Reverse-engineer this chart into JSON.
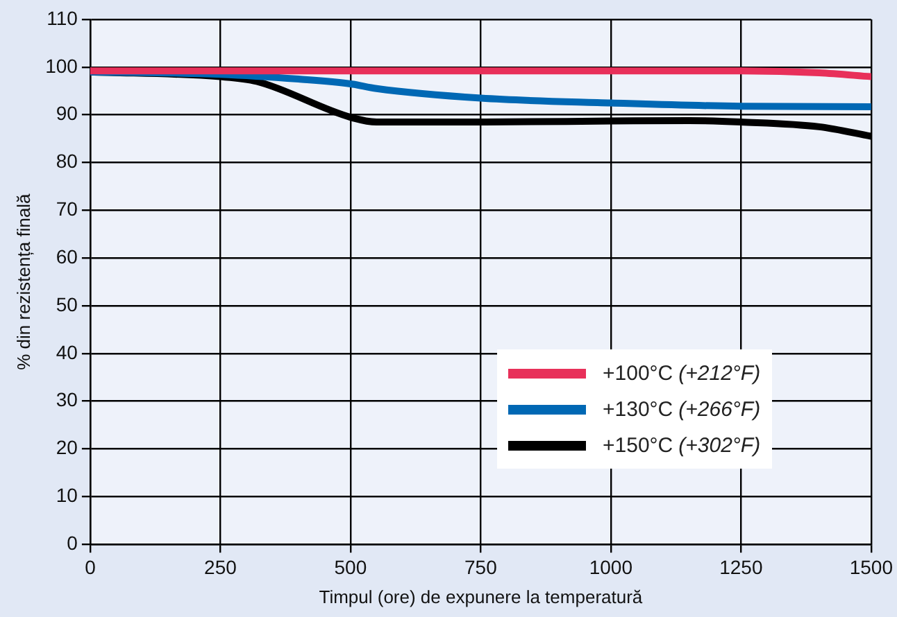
{
  "chart_data": {
    "type": "line",
    "xlabel": "Timpul (ore) de expunere la temperatură",
    "ylabel": "% din rezistența finală",
    "xlim": [
      0,
      1500
    ],
    "xticks": [
      0,
      250,
      500,
      750,
      1000,
      1250,
      1500
    ],
    "ylim": [
      0,
      110
    ],
    "yticks": [
      0,
      10,
      20,
      30,
      40,
      50,
      60,
      70,
      80,
      90,
      100,
      110
    ],
    "grid": true,
    "legend": "bottom right",
    "marker": "none",
    "line_style": "solid",
    "series": [
      {
        "name": "+100°C (+212°F)",
        "color": "#e8305a",
        "x": [
          0,
          250,
          500,
          750,
          1000,
          1250,
          1400,
          1500
        ],
        "values": [
          99.2,
          99.2,
          99.2,
          99.2,
          99.2,
          99.2,
          98.8,
          98
        ]
      },
      {
        "name": "+130°C (+266°F)",
        "color": "#0068b4",
        "x": [
          0,
          250,
          400,
          500,
          550,
          750,
          1000,
          1250,
          1500
        ],
        "values": [
          99,
          98.5,
          97.5,
          96.5,
          95.5,
          93.5,
          92.5,
          91.8,
          91.7
        ]
      },
      {
        "name": "+150°C (+302°F)",
        "color": "#000000",
        "x": [
          0,
          250,
          320,
          500,
          550,
          750,
          1000,
          1150,
          1250,
          1400,
          1500
        ],
        "values": [
          99,
          98,
          97,
          89.5,
          88.5,
          88.5,
          88.7,
          88.8,
          88.5,
          87.5,
          85.5
        ]
      }
    ]
  }
}
